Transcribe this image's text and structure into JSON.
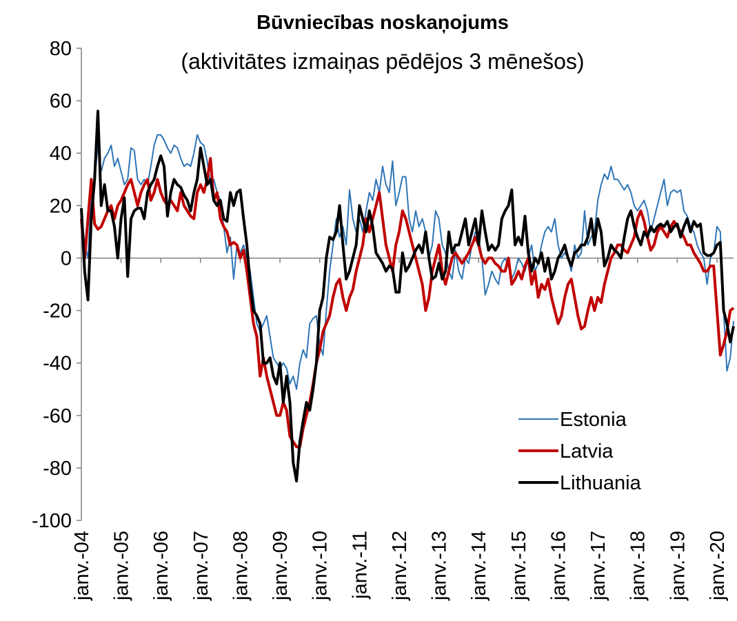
{
  "chart_data": {
    "type": "line",
    "title": "Būvniecības  noskaņojums",
    "subtitle": "(aktivitātes izmaiņas pēdējos 3 mēnešos)",
    "categories": [
      "janv.-04",
      null,
      null,
      null,
      null,
      null,
      null,
      null,
      null,
      null,
      null,
      null,
      "janv.-05",
      null,
      null,
      null,
      null,
      null,
      null,
      null,
      null,
      null,
      null,
      null,
      "janv.-06",
      null,
      null,
      null,
      null,
      null,
      null,
      null,
      null,
      null,
      null,
      null,
      "janv.-07",
      null,
      null,
      null,
      null,
      null,
      null,
      null,
      null,
      null,
      null,
      null,
      "janv.-08",
      null,
      null,
      null,
      null,
      null,
      null,
      null,
      null,
      null,
      null,
      null,
      "janv.-09",
      null,
      null,
      null,
      null,
      null,
      null,
      null,
      null,
      null,
      null,
      null,
      "janv.-10",
      null,
      null,
      null,
      null,
      null,
      null,
      null,
      null,
      null,
      null,
      null,
      "janv.-11",
      null,
      null,
      null,
      null,
      null,
      null,
      null,
      null,
      null,
      null,
      null,
      "janv.-12",
      null,
      null,
      null,
      null,
      null,
      null,
      null,
      null,
      null,
      null,
      null,
      "janv.-13",
      null,
      null,
      null,
      null,
      null,
      null,
      null,
      null,
      null,
      null,
      null,
      "janv.-14",
      null,
      null,
      null,
      null,
      null,
      null,
      null,
      null,
      null,
      null,
      null,
      "janv.-15",
      null,
      null,
      null,
      null,
      null,
      null,
      null,
      null,
      null,
      null,
      null,
      "janv.-16",
      null,
      null,
      null,
      null,
      null,
      null,
      null,
      null,
      null,
      null,
      null,
      "janv.-17",
      null,
      null,
      null,
      null,
      null,
      null,
      null,
      null,
      null,
      null,
      null,
      "janv.-18",
      null,
      null,
      null,
      null,
      null,
      null,
      null,
      null,
      null,
      null,
      null,
      "janv.-19",
      null,
      null,
      null,
      null,
      null,
      null,
      null,
      null,
      null,
      null,
      null,
      "janv.-20",
      null,
      null,
      null,
      null,
      null
    ],
    "series": [
      {
        "name": "Estonia",
        "color": "#2e75b6",
        "width": 2,
        "values": [
          19,
          5,
          0,
          25,
          30,
          43,
          33,
          38,
          40,
          43,
          35,
          38,
          33,
          28,
          30,
          42,
          41,
          30,
          28,
          30,
          28,
          35,
          43,
          47,
          47,
          45,
          42,
          40,
          43,
          42,
          38,
          35,
          36,
          35,
          40,
          47,
          44,
          43,
          37,
          28,
          30,
          25,
          22,
          12,
          2,
          8,
          -8,
          5,
          2,
          5,
          0,
          -5,
          -15,
          -25,
          -28,
          -25,
          -22,
          -30,
          -38,
          -40,
          -42,
          -40,
          -42,
          -48,
          -45,
          -50,
          -40,
          -35,
          -38,
          -25,
          -23,
          -22,
          -33,
          -37,
          -20,
          -5,
          5,
          15,
          8,
          12,
          5,
          26,
          15,
          10,
          15,
          10,
          18,
          25,
          22,
          30,
          25,
          35,
          28,
          25,
          37,
          20,
          25,
          31,
          31,
          15,
          10,
          18,
          12,
          15,
          10,
          0,
          5,
          18,
          15,
          5,
          2,
          -5,
          -8,
          3,
          -5,
          -8,
          0,
          -2,
          5,
          10,
          8,
          0,
          -14,
          -10,
          -5,
          -8,
          -10,
          -2,
          0,
          -3,
          -8,
          -5,
          0,
          -2,
          -5,
          0,
          5,
          -5,
          -2,
          5,
          10,
          12,
          10,
          15,
          5,
          0,
          2,
          0,
          -5,
          5,
          0,
          2,
          18,
          5,
          8,
          10,
          22,
          28,
          32,
          30,
          35,
          30,
          30,
          28,
          26,
          28,
          25,
          20,
          18,
          20,
          22,
          18,
          10,
          15,
          20,
          25,
          30,
          20,
          25,
          26,
          25,
          26,
          18,
          16,
          12,
          10,
          5,
          2,
          0,
          -10,
          0,
          2,
          12,
          10,
          -20,
          -43,
          -38,
          -24
        ]
      },
      {
        "name": "Latvia",
        "color": "#c00000",
        "width": 4,
        "values": [
          15,
          0,
          15,
          30,
          13,
          11,
          12,
          15,
          18,
          20,
          15,
          20,
          22,
          25,
          28,
          30,
          25,
          20,
          25,
          28,
          30,
          22,
          25,
          30,
          25,
          22,
          20,
          22,
          20,
          18,
          25,
          20,
          18,
          16,
          15,
          25,
          28,
          25,
          30,
          38,
          22,
          25,
          15,
          12,
          10,
          5,
          6,
          5,
          0,
          3,
          -5,
          -15,
          -25,
          -30,
          -45,
          -38,
          -45,
          -50,
          -55,
          -60,
          -60,
          -55,
          -58,
          -68,
          -70,
          -72,
          -72,
          -65,
          -60,
          -55,
          -48,
          -40,
          -35,
          -28,
          -25,
          -22,
          -15,
          -10,
          -8,
          -15,
          -20,
          -15,
          -12,
          -5,
          0,
          5,
          15,
          10,
          15,
          20,
          25,
          15,
          5,
          0,
          -5,
          5,
          10,
          18,
          15,
          10,
          5,
          0,
          -5,
          -10,
          -20,
          -15,
          -5,
          0,
          5,
          -5,
          -10,
          -5,
          0,
          2,
          0,
          -2,
          0,
          2,
          5,
          8,
          5,
          0,
          -2,
          0,
          0,
          -2,
          -3,
          -5,
          -5,
          0,
          -10,
          -8,
          -5,
          -8,
          -3,
          0,
          -10,
          -5,
          -15,
          -10,
          -12,
          -8,
          -15,
          -20,
          -25,
          -22,
          -15,
          -10,
          -8,
          -15,
          -22,
          -27,
          -26,
          -20,
          -15,
          -20,
          -15,
          -17,
          -10,
          -5,
          0,
          2,
          5,
          5,
          3,
          2,
          5,
          8,
          15,
          18,
          14,
          8,
          3,
          5,
          10,
          12,
          10,
          8,
          12,
          14,
          12,
          10,
          8,
          5,
          5,
          2,
          0,
          -2,
          -5,
          -5,
          -3,
          -3,
          -20,
          -37,
          -33,
          -28,
          -20,
          -19
        ]
      },
      {
        "name": "Lithuania",
        "color": "#000000",
        "width": 4,
        "values": [
          19,
          -5,
          -16,
          15,
          30,
          56,
          20,
          28,
          18,
          18,
          12,
          0,
          15,
          23,
          -7,
          15,
          18,
          19,
          19,
          15,
          25,
          28,
          30,
          35,
          39,
          35,
          16,
          25,
          30,
          28,
          27,
          24,
          22,
          18,
          25,
          30,
          42,
          35,
          28,
          30,
          22,
          20,
          22,
          15,
          14,
          25,
          20,
          25,
          26,
          15,
          5,
          -10,
          -20,
          -22,
          -25,
          -40,
          -40,
          -38,
          -45,
          -48,
          -40,
          -55,
          -45,
          -55,
          -78,
          -85,
          -70,
          -62,
          -55,
          -58,
          -50,
          -40,
          -20,
          -15,
          0,
          8,
          7,
          10,
          20,
          5,
          -8,
          -5,
          0,
          5,
          20,
          15,
          10,
          18,
          12,
          2,
          0,
          -2,
          -5,
          -3,
          -4,
          -13,
          -13,
          2,
          -5,
          -3,
          0,
          3,
          5,
          2,
          10,
          0,
          -8,
          -7,
          -2,
          -8,
          -5,
          10,
          2,
          5,
          5,
          10,
          15,
          5,
          10,
          15,
          5,
          18,
          10,
          3,
          5,
          3,
          5,
          15,
          18,
          20,
          26,
          5,
          8,
          5,
          16,
          2,
          -5,
          0,
          -2,
          2,
          -5,
          0,
          -8,
          -5,
          0,
          2,
          5,
          0,
          -3,
          2,
          3,
          5,
          5,
          8,
          15,
          5,
          15,
          10,
          -3,
          0,
          5,
          3,
          2,
          0,
          8,
          15,
          18,
          12,
          8,
          5,
          10,
          8,
          12,
          10,
          12,
          13,
          12,
          14,
          10,
          12,
          13,
          8,
          12,
          15,
          10,
          14,
          12,
          13,
          2,
          1,
          1,
          2,
          5,
          6,
          -20,
          -25,
          -32,
          -26
        ]
      }
    ],
    "ylim": [
      -100,
      80
    ],
    "yticks": [
      -100,
      -80,
      -60,
      -40,
      -20,
      0,
      20,
      40,
      60,
      80
    ],
    "grid": false,
    "legend": "lower right"
  }
}
